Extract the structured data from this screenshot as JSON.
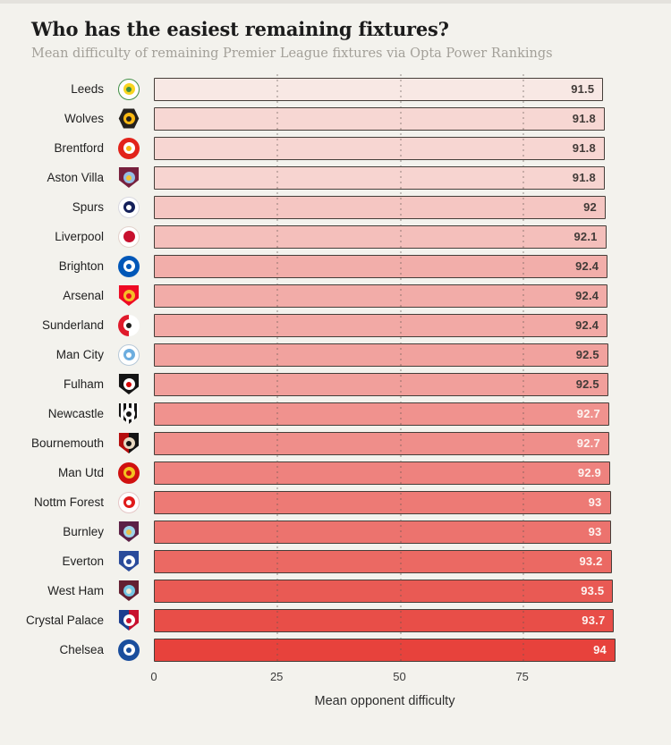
{
  "header": {
    "title": "Who has the easiest remaining fixtures?",
    "subtitle": "Mean difficulty of remaining Premier League fixtures via Opta Power Rankings"
  },
  "chart_data": {
    "type": "bar",
    "orientation": "horizontal",
    "title": "Who has the easiest remaining fixtures?",
    "subtitle": "Mean difficulty of remaining Premier League fixtures via Opta Power Rankings",
    "xlabel": "Mean opponent difficulty",
    "xlim": [
      0,
      94
    ],
    "xticks": [
      0,
      25,
      50,
      75
    ],
    "grid": "vertical-dotted",
    "legend": "none",
    "categories": [
      "Leeds",
      "Wolves",
      "Brentford",
      "Aston Villa",
      "Spurs",
      "Liverpool",
      "Brighton",
      "Arsenal",
      "Sunderland",
      "Man City",
      "Fulham",
      "Newcastle",
      "Bournemouth",
      "Man Utd",
      "Nottm Forest",
      "Burnley",
      "Everton",
      "West Ham",
      "Crystal Palace",
      "Chelsea"
    ],
    "values": [
      91.5,
      91.8,
      91.8,
      91.8,
      92,
      92.1,
      92.4,
      92.4,
      92.4,
      92.5,
      92.5,
      92.7,
      92.7,
      92.9,
      93,
      93,
      93.2,
      93.5,
      93.7,
      94
    ]
  },
  "axis": {
    "ticks": [
      "0",
      "25",
      "50",
      "75"
    ],
    "tick_values": [
      0,
      25,
      50,
      75
    ],
    "max_value": 94,
    "label": "Mean opponent difficulty"
  },
  "colors": {
    "background": "#f3f2ed",
    "bar_border": "#453e39",
    "value_dark": "#423b38",
    "value_light": "#fdf4f1",
    "gridline": "rgba(94,84,78,0.32)"
  },
  "teams": [
    {
      "name": "Leeds",
      "slug": "leeds",
      "value": 91.5,
      "display": "91.5",
      "bar_color": "#f8e8e4",
      "value_color": "#423b38",
      "badge": {
        "shape": "circle",
        "base": "#ffffff",
        "inner": "#f7d51f",
        "core": "#3f8e44",
        "border": "#3f8e44"
      }
    },
    {
      "name": "Wolves",
      "slug": "wolves",
      "value": 91.8,
      "display": "91.8",
      "bar_color": "#f7d7d3",
      "value_color": "#423b38",
      "badge": {
        "shape": "hexagon",
        "base": "#25211e",
        "inner": "#fdb913",
        "core": "#25211e"
      }
    },
    {
      "name": "Brentford",
      "slug": "brentford",
      "value": 91.8,
      "display": "91.8",
      "bar_color": "#f7d6d2",
      "value_color": "#423b38",
      "badge": {
        "shape": "circle",
        "base": "#e2231a",
        "inner": "#ffffff",
        "core": "#f6b715"
      }
    },
    {
      "name": "Aston Villa",
      "slug": "aston-villa",
      "value": 91.8,
      "display": "91.8",
      "bar_color": "#f7d4d0",
      "value_color": "#423b38",
      "badge": {
        "shape": "shield",
        "base": "#77203d",
        "inner": "#94bee5",
        "core": "#f3c434"
      }
    },
    {
      "name": "Spurs",
      "slug": "spurs",
      "value": 92,
      "display": "92",
      "bar_color": "#f5c6c2",
      "value_color": "#423b38",
      "badge": {
        "shape": "circle",
        "base": "#ffffff",
        "inner": "#14205a",
        "core": "#ffffff",
        "border": "#d8d8e0"
      }
    },
    {
      "name": "Liverpool",
      "slug": "liverpool",
      "value": 92.1,
      "display": "92.1",
      "bar_color": "#f4bfbb",
      "value_color": "#423b38",
      "badge": {
        "shape": "circle",
        "base": "#ffffff",
        "inner": "#c8102e",
        "core": "#c8102e",
        "border": "#e3d2cc"
      }
    },
    {
      "name": "Brighton",
      "slug": "brighton",
      "value": 92.4,
      "display": "92.4",
      "bar_color": "#f2aeaa",
      "value_color": "#423b38",
      "badge": {
        "shape": "circle",
        "base": "#0057b8",
        "inner": "#ffffff",
        "core": "#0057b8"
      }
    },
    {
      "name": "Arsenal",
      "slug": "arsenal",
      "value": 92.4,
      "display": "92.4",
      "bar_color": "#f2aca8",
      "value_color": "#423b38",
      "badge": {
        "shape": "shield",
        "base": "#ee0a24",
        "inner": "#f6bd27",
        "core": "#ee0a24"
      }
    },
    {
      "name": "Sunderland",
      "slug": "sunderland",
      "value": 92.4,
      "display": "92.4",
      "bar_color": "#f2a9a5",
      "value_color": "#423b38",
      "badge": {
        "shape": "circle",
        "base": "#e01a2b",
        "inner": "#ffffff",
        "core": "#1d1d1b",
        "pattern": "split",
        "split2": "#ffffff"
      }
    },
    {
      "name": "Man City",
      "slug": "man-city",
      "value": 92.5,
      "display": "92.5",
      "bar_color": "#f1a29e",
      "value_color": "#423b38",
      "badge": {
        "shape": "circle",
        "base": "#ffffff",
        "inner": "#6caddf",
        "core": "#ffffff",
        "border": "#b7c9d8"
      }
    },
    {
      "name": "Fulham",
      "slug": "fulham",
      "value": 92.5,
      "display": "92.5",
      "bar_color": "#f19f9b",
      "value_color": "#423b38",
      "badge": {
        "shape": "shield",
        "base": "#141414",
        "inner": "#ffffff",
        "core": "#d40000"
      }
    },
    {
      "name": "Newcastle",
      "slug": "newcastle",
      "value": 92.7,
      "display": "92.7",
      "bar_color": "#f0928e",
      "value_color": "#fdf4f1",
      "badge": {
        "shape": "shield",
        "base": "#141414",
        "inner": "#ffffff",
        "core": "#141414",
        "pattern": "stripes",
        "split2": "#ffffff"
      }
    },
    {
      "name": "Bournemouth",
      "slug": "bournemouth",
      "value": 92.7,
      "display": "92.7",
      "bar_color": "#ef8e8a",
      "value_color": "#fdf4f1",
      "badge": {
        "shape": "shield",
        "base": "#b50d0d",
        "inner": "#e8d9c2",
        "core": "#141414",
        "pattern": "split",
        "split2": "#141414"
      }
    },
    {
      "name": "Man Utd",
      "slug": "man-utd",
      "value": 92.9,
      "display": "92.9",
      "bar_color": "#ee827e",
      "value_color": "#fdf4f1",
      "badge": {
        "shape": "circle",
        "base": "#d0100f",
        "inner": "#f3c220",
        "core": "#d0100f"
      }
    },
    {
      "name": "Nottm Forest",
      "slug": "nottm-forest",
      "value": 93,
      "display": "93",
      "bar_color": "#ed7a75",
      "value_color": "#fdf4f1",
      "badge": {
        "shape": "circle",
        "base": "#ffffff",
        "inner": "#e01a1a",
        "core": "#ffffff",
        "border": "#e5c6c6"
      }
    },
    {
      "name": "Burnley",
      "slug": "burnley",
      "value": 93,
      "display": "93",
      "bar_color": "#ec736e",
      "value_color": "#fdf4f1",
      "badge": {
        "shape": "shield",
        "base": "#5c2046",
        "inner": "#9fd3e8",
        "core": "#ecc14c"
      }
    },
    {
      "name": "Everton",
      "slug": "everton",
      "value": 93.2,
      "display": "93.2",
      "bar_color": "#eb6963",
      "value_color": "#fdf4f1",
      "badge": {
        "shape": "shield",
        "base": "#2a4b9b",
        "inner": "#ffffff",
        "core": "#2a4b9b"
      }
    },
    {
      "name": "West Ham",
      "slug": "west-ham",
      "value": 93.5,
      "display": "93.5",
      "bar_color": "#e95a54",
      "value_color": "#fdf4f1",
      "badge": {
        "shape": "shield",
        "base": "#641f32",
        "inner": "#74c6e4",
        "core": "#efe7d2"
      }
    },
    {
      "name": "Crystal Palace",
      "slug": "crystal-palace",
      "value": 93.7,
      "display": "93.7",
      "bar_color": "#e84e48",
      "value_color": "#fdf4f1",
      "badge": {
        "shape": "shield",
        "base": "#1c3e8f",
        "inner": "#ffffff",
        "core": "#c8102e",
        "pattern": "split",
        "split2": "#c8102e"
      }
    },
    {
      "name": "Chelsea",
      "slug": "chelsea",
      "value": 94,
      "display": "94",
      "bar_color": "#e7423c",
      "value_color": "#fdf4f1",
      "badge": {
        "shape": "circle",
        "base": "#1a4e9d",
        "inner": "#ffffff",
        "core": "#1a4e9d"
      }
    }
  ]
}
